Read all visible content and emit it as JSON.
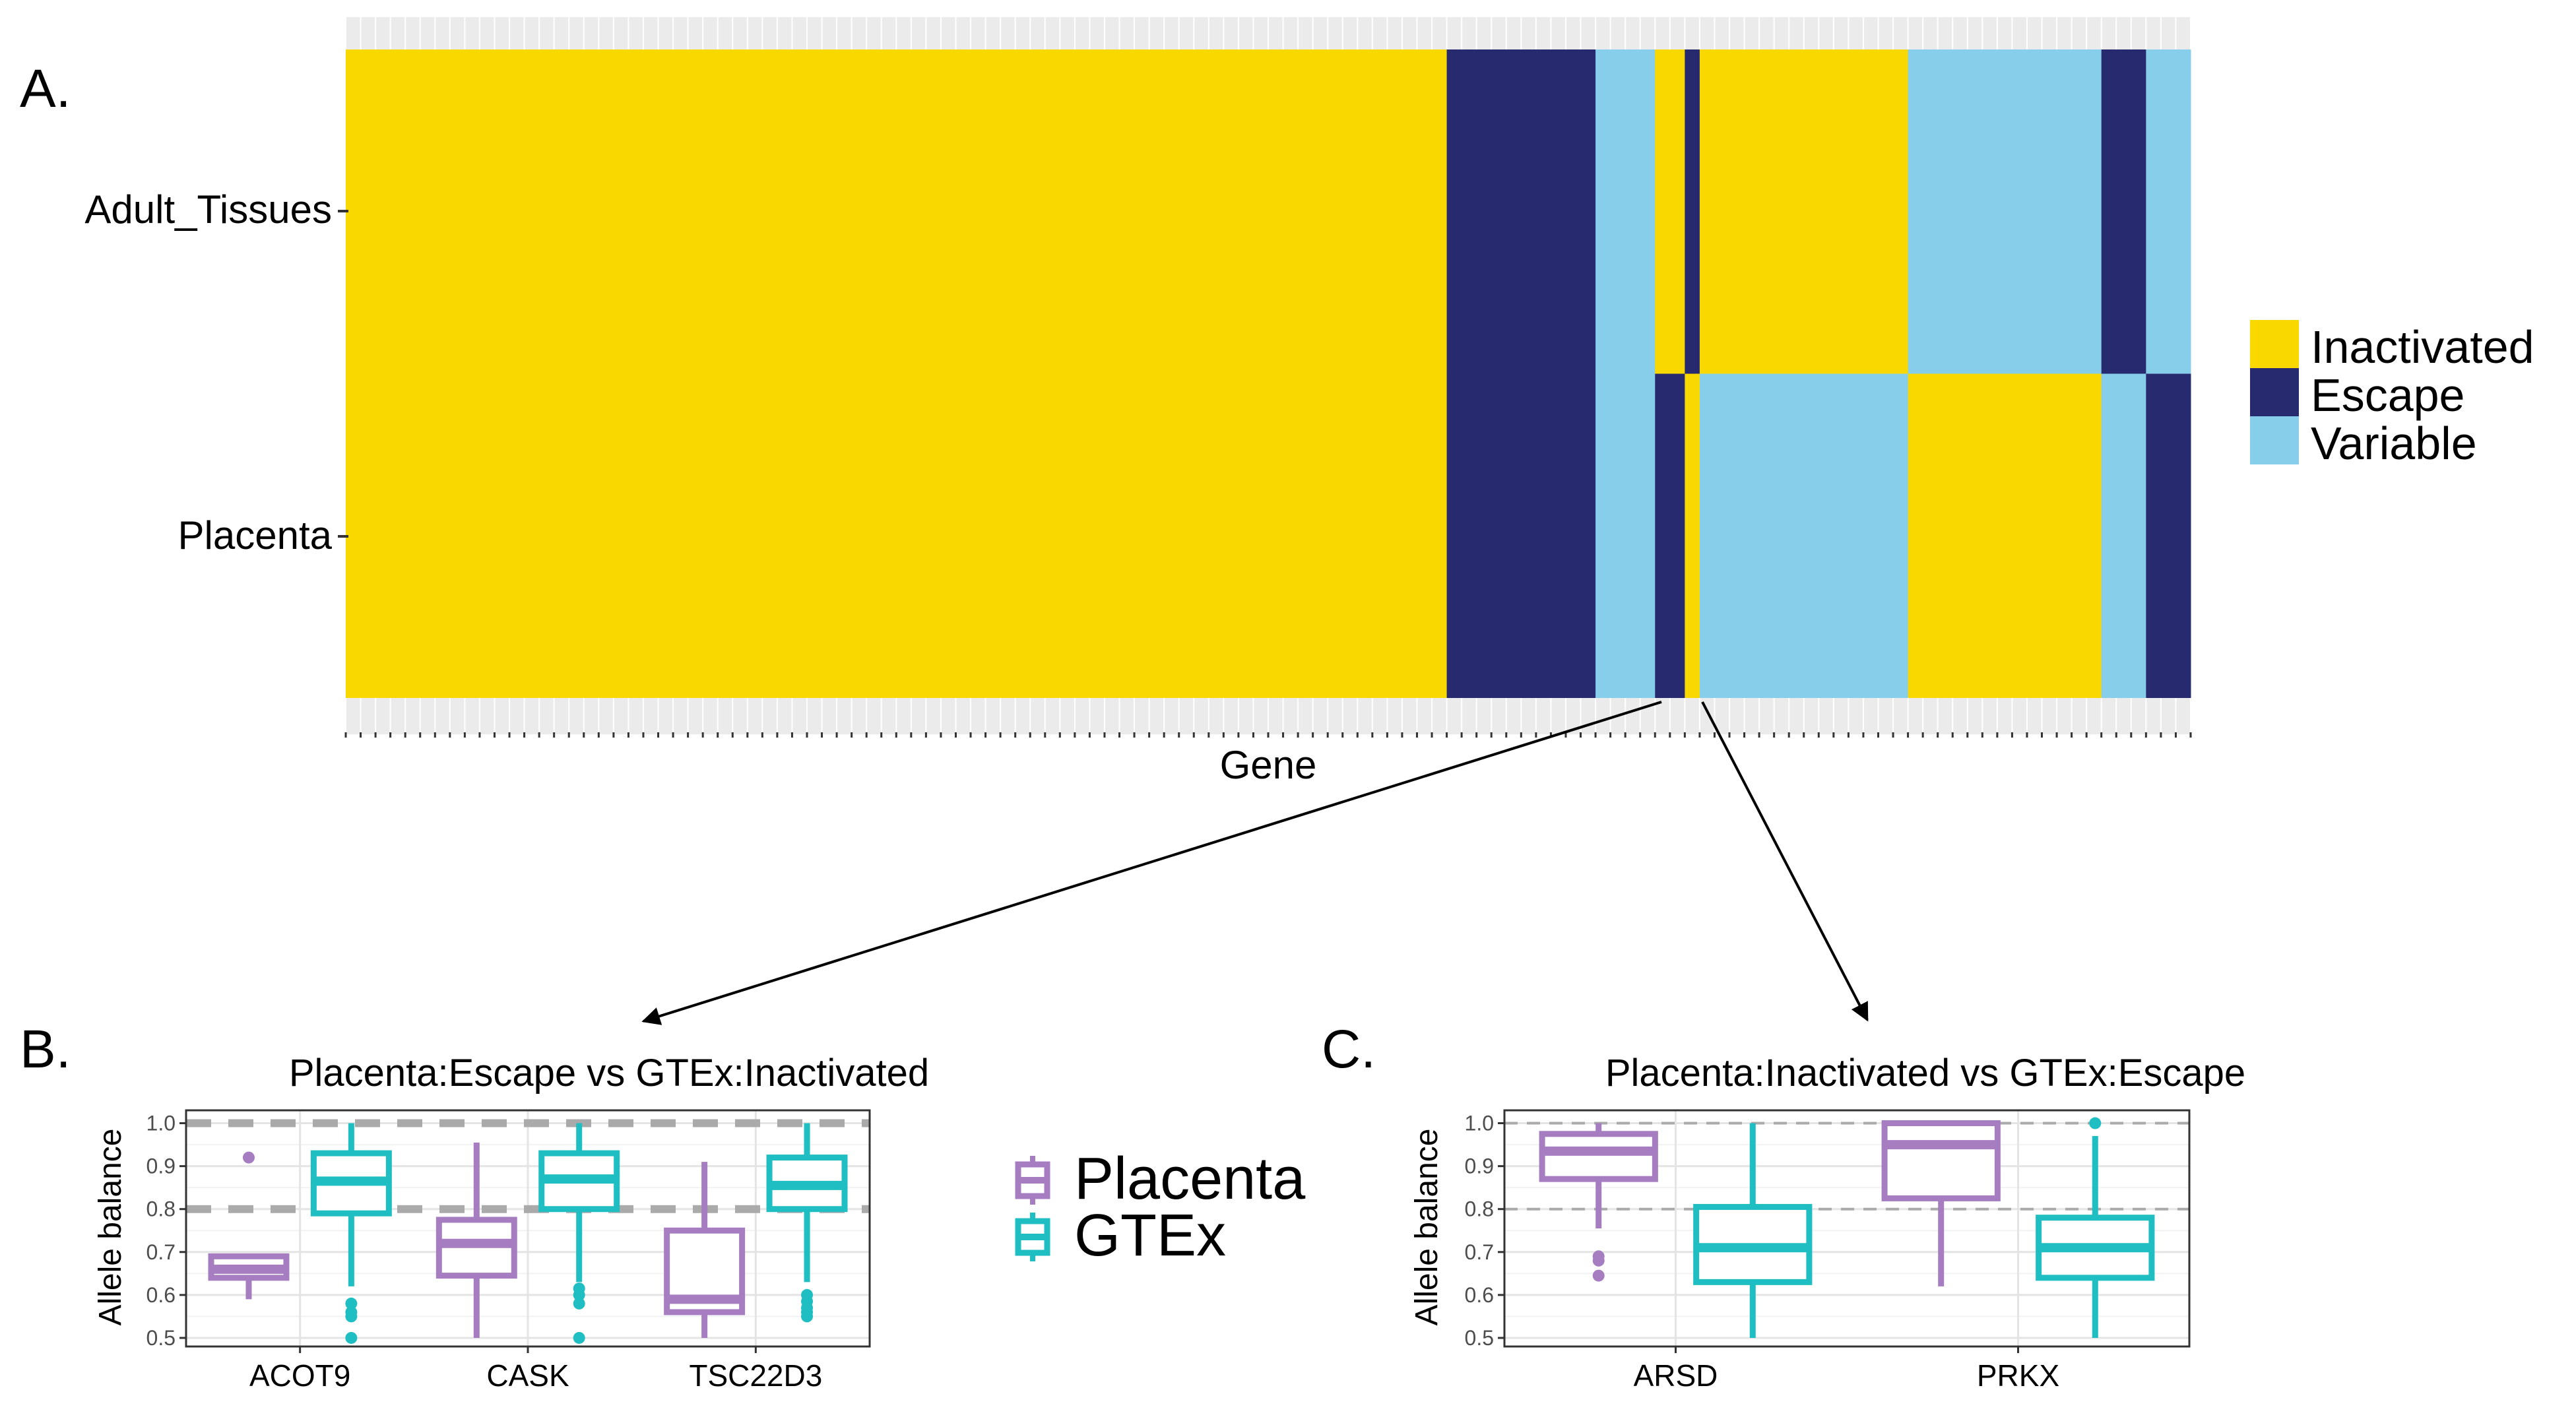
{
  "panels": {
    "a": "A.",
    "b": "B.",
    "c": "C."
  },
  "colors": {
    "inactivated": "#f9d800",
    "escape": "#282a70",
    "variable": "#87ceeb",
    "placenta": "#a57dc0",
    "gtex": "#1fbec2",
    "ref_line": "#aaaaaa"
  },
  "chart_data": [
    {
      "type": "heatmap",
      "xlabel": "Gene",
      "rows": [
        "Adult_Tissues",
        "Placenta"
      ],
      "legend": [
        "Inactivated",
        "Escape",
        "Variable"
      ],
      "legend_position": "right",
      "gene_counts": {
        "segments": [
          {
            "genes": 74,
            "Adult_Tissues": "Inactivated",
            "Placenta": "Inactivated"
          },
          {
            "genes": 10,
            "Adult_Tissues": "Escape",
            "Placenta": "Escape"
          },
          {
            "genes": 4,
            "Adult_Tissues": "Variable",
            "Placenta": "Variable"
          },
          {
            "genes": 2,
            "Adult_Tissues": "Inactivated",
            "Placenta": "Escape"
          },
          {
            "genes": 1,
            "Adult_Tissues": "Escape",
            "Placenta": "Inactivated"
          },
          {
            "genes": 14,
            "Adult_Tissues": "Inactivated",
            "Placenta": "Variable"
          },
          {
            "genes": 13,
            "Adult_Tissues": "Variable",
            "Placenta": "Inactivated"
          },
          {
            "genes": 3,
            "Adult_Tissues": "Escape",
            "Placenta": "Variable"
          },
          {
            "genes": 3,
            "Adult_Tissues": "Variable",
            "Placenta": "Escape"
          }
        ]
      }
    },
    {
      "type": "box",
      "title": "Placenta:Escape vs GTEx:Inactivated",
      "ylabel": "Allele balance",
      "categories": [
        "ACOT9",
        "CASK",
        "TSC22D3"
      ],
      "ylim": [
        0.48,
        1.03
      ],
      "yticks": [
        "0.5",
        "0.6",
        "0.7",
        "0.8",
        "0.9",
        "1.0"
      ],
      "ref_lines": [
        0.8,
        1.0
      ],
      "series": [
        {
          "name": "Placenta",
          "boxes": [
            {
              "q1": 0.64,
              "median": 0.66,
              "q3": 0.69,
              "min": 0.59,
              "max": 0.69,
              "outliers": [
                0.92
              ]
            },
            {
              "q1": 0.645,
              "median": 0.72,
              "q3": 0.775,
              "min": 0.5,
              "max": 0.955,
              "outliers": []
            },
            {
              "q1": 0.56,
              "median": 0.59,
              "q3": 0.75,
              "min": 0.5,
              "max": 0.91,
              "outliers": []
            }
          ]
        },
        {
          "name": "GTEx",
          "boxes": [
            {
              "q1": 0.79,
              "median": 0.865,
              "q3": 0.93,
              "min": 0.62,
              "max": 1.0,
              "outliers": [
                0.58,
                0.56,
                0.55,
                0.5
              ]
            },
            {
              "q1": 0.8,
              "median": 0.87,
              "q3": 0.93,
              "min": 0.63,
              "max": 1.0,
              "outliers": [
                0.615,
                0.6,
                0.58,
                0.5
              ]
            },
            {
              "q1": 0.8,
              "median": 0.855,
              "q3": 0.92,
              "min": 0.63,
              "max": 1.0,
              "outliers": [
                0.6,
                0.585,
                0.57,
                0.56,
                0.55
              ]
            }
          ]
        }
      ],
      "legend": [
        "Placenta",
        "GTEx"
      ]
    },
    {
      "type": "box",
      "title": "Placenta:Inactivated vs GTEx:Escape",
      "ylabel": "Allele balance",
      "categories": [
        "ARSD",
        "PRKX"
      ],
      "ylim": [
        0.48,
        1.03
      ],
      "yticks": [
        "0.5",
        "0.6",
        "0.7",
        "0.8",
        "0.9",
        "1.0"
      ],
      "ref_lines": [
        0.8,
        1.0
      ],
      "series": [
        {
          "name": "Placenta",
          "boxes": [
            {
              "q1": 0.87,
              "median": 0.935,
              "q3": 0.975,
              "min": 0.755,
              "max": 1.0,
              "outliers": [
                0.69,
                0.68,
                0.645
              ]
            },
            {
              "q1": 0.825,
              "median": 0.95,
              "q3": 1.0,
              "min": 0.62,
              "max": 1.0,
              "outliers": []
            }
          ]
        },
        {
          "name": "GTEx",
          "boxes": [
            {
              "q1": 0.63,
              "median": 0.71,
              "q3": 0.805,
              "min": 0.5,
              "max": 1.0,
              "outliers": []
            },
            {
              "q1": 0.64,
              "median": 0.71,
              "q3": 0.78,
              "min": 0.5,
              "max": 0.97,
              "outliers": [
                1.0
              ]
            }
          ]
        }
      ]
    }
  ]
}
